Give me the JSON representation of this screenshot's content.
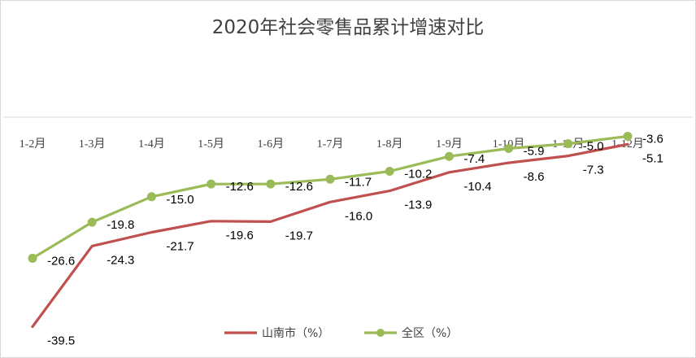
{
  "chart_data": {
    "type": "line",
    "title": "2020年社会零售品累计增速对比",
    "categories": [
      "1-2月",
      "1-3月",
      "1-4月",
      "1-5月",
      "1-6月",
      "1-7月",
      "1-8月",
      "1-9月",
      "1-10月",
      "1-11月",
      "1-12月"
    ],
    "series": [
      {
        "name": "山南市（%）",
        "color": "#c0504d",
        "values": [
          -39.5,
          -24.3,
          -21.7,
          -19.6,
          -19.7,
          -16.0,
          -13.9,
          -10.4,
          -8.6,
          -7.3,
          -5.1
        ]
      },
      {
        "name": "全区（%）",
        "color": "#9bbb59",
        "values": [
          -26.6,
          -19.8,
          -15.0,
          -12.6,
          -12.6,
          -11.7,
          -10.2,
          -7.4,
          -5.9,
          -5.0,
          -3.6
        ]
      }
    ],
    "ylim": [
      -40,
      0
    ],
    "xlabel": "",
    "ylabel": "",
    "grid": false,
    "legend": "bottom"
  }
}
